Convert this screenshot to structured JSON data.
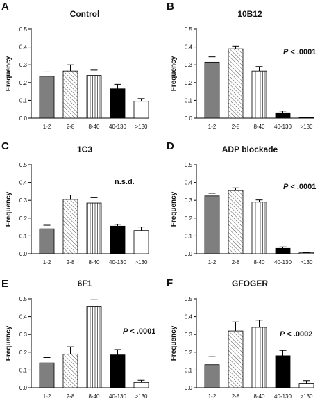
{
  "categories": [
    "1-2",
    "2-8",
    "8-40",
    "40-130",
    ">130"
  ],
  "chart_data": [
    {
      "type": "bar",
      "panel": "A",
      "title": "Control",
      "ylabel": "Frequency",
      "ylim": [
        0,
        0.5
      ],
      "yticks": [
        "0.0",
        "0.1",
        "0.2",
        "0.3",
        "0.4",
        "0.5"
      ],
      "categories": [
        "1-2",
        "2-8",
        "8-40",
        "40-130",
        ">130"
      ],
      "values": [
        0.235,
        0.265,
        0.24,
        0.165,
        0.095
      ],
      "errors": [
        0.025,
        0.035,
        0.03,
        0.025,
        0.015
      ],
      "annotation_p": "",
      "annotation_text": ""
    },
    {
      "type": "bar",
      "panel": "B",
      "title": "10B12",
      "ylabel": "Frequency",
      "ylim": [
        0,
        0.5
      ],
      "yticks": [
        "0.0",
        "0.1",
        "0.2",
        "0.3",
        "0.4",
        "0.5"
      ],
      "categories": [
        "1-2",
        "2-8",
        "8-40",
        "40-130",
        ">130"
      ],
      "values": [
        0.315,
        0.39,
        0.265,
        0.03,
        0.003
      ],
      "errors": [
        0.03,
        0.015,
        0.025,
        0.01,
        0.002
      ],
      "annotation_p": "P",
      "annotation_text": "< .0001"
    },
    {
      "type": "bar",
      "panel": "C",
      "title": "1C3",
      "ylabel": "Frequency",
      "ylim": [
        0,
        0.5
      ],
      "yticks": [
        "0.0",
        "0.1",
        "0.2",
        "0.3",
        "0.4",
        "0.5"
      ],
      "categories": [
        "1-2",
        "2-8",
        "8-40",
        "40-130",
        ">130"
      ],
      "values": [
        0.14,
        0.305,
        0.285,
        0.155,
        0.13
      ],
      "errors": [
        0.02,
        0.025,
        0.03,
        0.01,
        0.02
      ],
      "annotation_p": "",
      "annotation_text": "n.s.d."
    },
    {
      "type": "bar",
      "panel": "D",
      "title": "ADP blockade",
      "ylabel": "Frequency",
      "ylim": [
        0,
        0.5
      ],
      "yticks": [
        "0.0",
        "0.1",
        "0.2",
        "0.3",
        "0.4",
        "0.5"
      ],
      "categories": [
        "1-2",
        "2-8",
        "8-40",
        "40-130",
        ">130"
      ],
      "values": [
        0.325,
        0.355,
        0.29,
        0.03,
        0.005
      ],
      "errors": [
        0.015,
        0.015,
        0.012,
        0.008,
        0.002
      ],
      "annotation_p": "P",
      "annotation_text": "< .0001"
    },
    {
      "type": "bar",
      "panel": "E",
      "title": "6F1",
      "ylabel": "Frequency",
      "ylim": [
        0,
        0.5
      ],
      "yticks": [
        "0.0",
        "0.1",
        "0.2",
        "0.3",
        "0.4",
        "0.5"
      ],
      "categories": [
        "1-2",
        "2-8",
        "8-40",
        "40-130",
        ">130"
      ],
      "values": [
        0.14,
        0.19,
        0.455,
        0.185,
        0.03
      ],
      "errors": [
        0.03,
        0.04,
        0.04,
        0.03,
        0.012
      ],
      "annotation_p": "P",
      "annotation_text": "< .0001"
    },
    {
      "type": "bar",
      "panel": "F",
      "title": "GFOGER",
      "ylabel": "Frequency",
      "ylim": [
        0,
        0.5
      ],
      "yticks": [
        "0.0",
        "0.1",
        "0.2",
        "0.3",
        "0.4",
        "0.5"
      ],
      "categories": [
        "1-2",
        "2-8",
        "8-40",
        "40-130",
        ">130"
      ],
      "values": [
        0.13,
        0.32,
        0.34,
        0.18,
        0.025
      ],
      "errors": [
        0.045,
        0.05,
        0.04,
        0.03,
        0.015
      ],
      "annotation_p": "P",
      "annotation_text": "< .0002"
    }
  ],
  "series_colors": [
    "#7f7f7f",
    "hatch-diagonal",
    "hatch-vertical",
    "#000000",
    "#ffffff"
  ]
}
